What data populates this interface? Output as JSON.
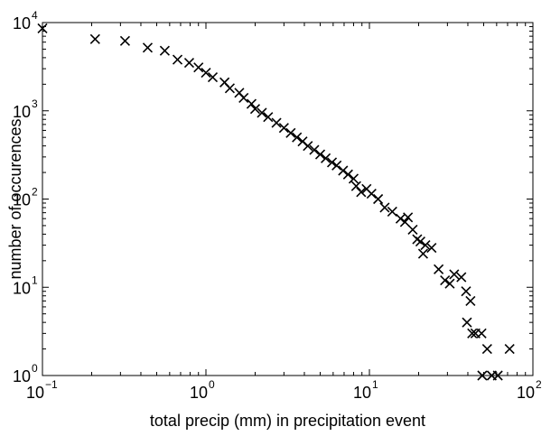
{
  "chart_data": {
    "type": "scatter",
    "title": "",
    "xlabel": "total precip (mm) in precipitation event",
    "ylabel": "number of occurences",
    "xscale": "log",
    "yscale": "log",
    "xlim": [
      0.1,
      100
    ],
    "ylim": [
      1,
      10000
    ],
    "grid": false,
    "legend": "none",
    "marker": "x",
    "marker_color": "#000000",
    "x_ticks": [
      {
        "value": 0.1,
        "base": "10",
        "exp": "−1"
      },
      {
        "value": 1,
        "base": "10",
        "exp": "0"
      },
      {
        "value": 10,
        "base": "10",
        "exp": "1"
      },
      {
        "value": 100,
        "base": "10",
        "exp": "2"
      }
    ],
    "y_ticks": [
      {
        "value": 1,
        "base": "10",
        "exp": "0"
      },
      {
        "value": 10,
        "base": "10",
        "exp": "1"
      },
      {
        "value": 100,
        "base": "10",
        "exp": "2"
      },
      {
        "value": 1000,
        "base": "10",
        "exp": "3"
      },
      {
        "value": 10000,
        "base": "10",
        "exp": "4"
      }
    ],
    "series": [
      {
        "points": [
          [
            0.1,
            8600
          ],
          [
            0.21,
            6500
          ],
          [
            0.32,
            6200
          ],
          [
            0.44,
            5200
          ],
          [
            0.56,
            4800
          ],
          [
            0.67,
            3800
          ],
          [
            0.79,
            3500
          ],
          [
            0.9,
            3100
          ],
          [
            1.0,
            2700
          ],
          [
            1.1,
            2400
          ],
          [
            1.3,
            2100
          ],
          [
            1.4,
            1800
          ],
          [
            1.6,
            1600
          ],
          [
            1.7,
            1400
          ],
          [
            1.9,
            1200
          ],
          [
            2.0,
            1050
          ],
          [
            2.2,
            950
          ],
          [
            2.4,
            850
          ],
          [
            2.7,
            730
          ],
          [
            3.0,
            640
          ],
          [
            3.3,
            560
          ],
          [
            3.6,
            500
          ],
          [
            3.9,
            450
          ],
          [
            4.2,
            400
          ],
          [
            4.6,
            360
          ],
          [
            5.0,
            320
          ],
          [
            5.4,
            290
          ],
          [
            5.9,
            260
          ],
          [
            6.3,
            240
          ],
          [
            6.9,
            210
          ],
          [
            7.4,
            190
          ],
          [
            8.0,
            170
          ],
          [
            8.3,
            140
          ],
          [
            8.9,
            120
          ],
          [
            9.6,
            130
          ],
          [
            10.3,
            115
          ],
          [
            11.3,
            100
          ],
          [
            12.4,
            80
          ],
          [
            13.8,
            72
          ],
          [
            15.5,
            60
          ],
          [
            16.5,
            55
          ],
          [
            17.2,
            62
          ],
          [
            18.4,
            45
          ],
          [
            19.6,
            35
          ],
          [
            20.5,
            33
          ],
          [
            22.0,
            30
          ],
          [
            24.0,
            28
          ],
          [
            21.3,
            24
          ],
          [
            26.5,
            16
          ],
          [
            29.0,
            12
          ],
          [
            31.0,
            11
          ],
          [
            33.0,
            14
          ],
          [
            36.5,
            13
          ],
          [
            39.0,
            9
          ],
          [
            41.5,
            7
          ],
          [
            39.5,
            4
          ],
          [
            42.5,
            3
          ],
          [
            44.5,
            3
          ],
          [
            48.5,
            3
          ],
          [
            52.5,
            2
          ],
          [
            49.0,
            1
          ],
          [
            56.0,
            1
          ],
          [
            61.0,
            1
          ],
          [
            72.0,
            2
          ]
        ]
      }
    ]
  }
}
